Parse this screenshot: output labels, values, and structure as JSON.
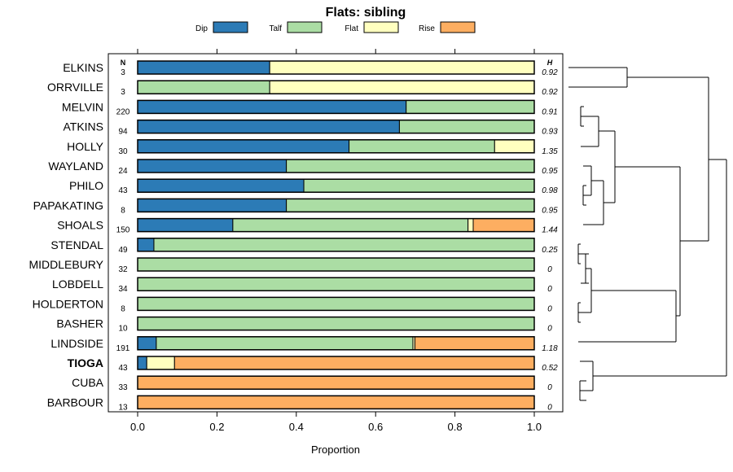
{
  "chart_data": {
    "type": "bar",
    "orientation": "horizontal",
    "stacked": true,
    "title": "Flats: sibling",
    "xlabel": "Proportion",
    "xlim": [
      0,
      1
    ],
    "ticks": [
      "0.0",
      "0.2",
      "0.4",
      "0.6",
      "0.8",
      "1.0"
    ],
    "tick_values": [
      0,
      0.2,
      0.4,
      0.6,
      0.8,
      1.0
    ],
    "n_header": "N",
    "h_header": "H",
    "legend": [
      {
        "name": "Dip",
        "color": "#2C7BB6"
      },
      {
        "name": "Talf",
        "color": "#ABDDA4"
      },
      {
        "name": "Flat",
        "color": "#FFFFBF"
      },
      {
        "name": "Rise",
        "color": "#FDAE61"
      }
    ],
    "rows": [
      {
        "name": "ELKINS",
        "n": "3",
        "h": "0.92",
        "bold": false,
        "values": [
          0.333,
          0,
          0.667,
          0
        ]
      },
      {
        "name": "ORRVILLE",
        "n": "3",
        "h": "0.92",
        "bold": false,
        "values": [
          0,
          0.333,
          0.667,
          0
        ]
      },
      {
        "name": "MELVIN",
        "n": "220",
        "h": "0.91",
        "bold": false,
        "values": [
          0.677,
          0.323,
          0,
          0
        ]
      },
      {
        "name": "ATKINS",
        "n": "94",
        "h": "0.93",
        "bold": false,
        "values": [
          0.66,
          0.34,
          0,
          0
        ]
      },
      {
        "name": "HOLLY",
        "n": "30",
        "h": "1.35",
        "bold": false,
        "values": [
          0.533,
          0.367,
          0.1,
          0
        ]
      },
      {
        "name": "WAYLAND",
        "n": "24",
        "h": "0.95",
        "bold": false,
        "values": [
          0.375,
          0.625,
          0,
          0
        ]
      },
      {
        "name": "PHILO",
        "n": "43",
        "h": "0.98",
        "bold": false,
        "values": [
          0.419,
          0.581,
          0,
          0
        ]
      },
      {
        "name": "PAPAKATING",
        "n": "8",
        "h": "0.95",
        "bold": false,
        "values": [
          0.375,
          0.625,
          0,
          0
        ]
      },
      {
        "name": "SHOALS",
        "n": "150",
        "h": "1.44",
        "bold": false,
        "values": [
          0.24,
          0.593,
          0.013,
          0.154
        ]
      },
      {
        "name": "STENDAL",
        "n": "49",
        "h": "0.25",
        "bold": false,
        "values": [
          0.041,
          0.959,
          0,
          0
        ]
      },
      {
        "name": "MIDDLEBURY",
        "n": "32",
        "h": "0",
        "bold": false,
        "values": [
          0,
          1,
          0,
          0
        ]
      },
      {
        "name": "LOBDELL",
        "n": "34",
        "h": "0",
        "bold": false,
        "values": [
          0,
          1,
          0,
          0
        ]
      },
      {
        "name": "HOLDERTON",
        "n": "8",
        "h": "0",
        "bold": false,
        "values": [
          0,
          1,
          0,
          0
        ]
      },
      {
        "name": "BASHER",
        "n": "10",
        "h": "0",
        "bold": false,
        "values": [
          0,
          1,
          0,
          0
        ]
      },
      {
        "name": "LINDSIDE",
        "n": "191",
        "h": "1.18",
        "bold": false,
        "values": [
          0.047,
          0.647,
          0.005,
          0.301
        ]
      },
      {
        "name": "TIOGA",
        "n": "43",
        "h": "0.52",
        "bold": true,
        "values": [
          0.023,
          0,
          0.07,
          0.907
        ]
      },
      {
        "name": "CUBA",
        "n": "33",
        "h": "0",
        "bold": false,
        "values": [
          0,
          0,
          0,
          1
        ]
      },
      {
        "name": "BARBOUR",
        "n": "13",
        "h": "0",
        "bold": false,
        "values": [
          0,
          0,
          0,
          1
        ]
      }
    ]
  }
}
